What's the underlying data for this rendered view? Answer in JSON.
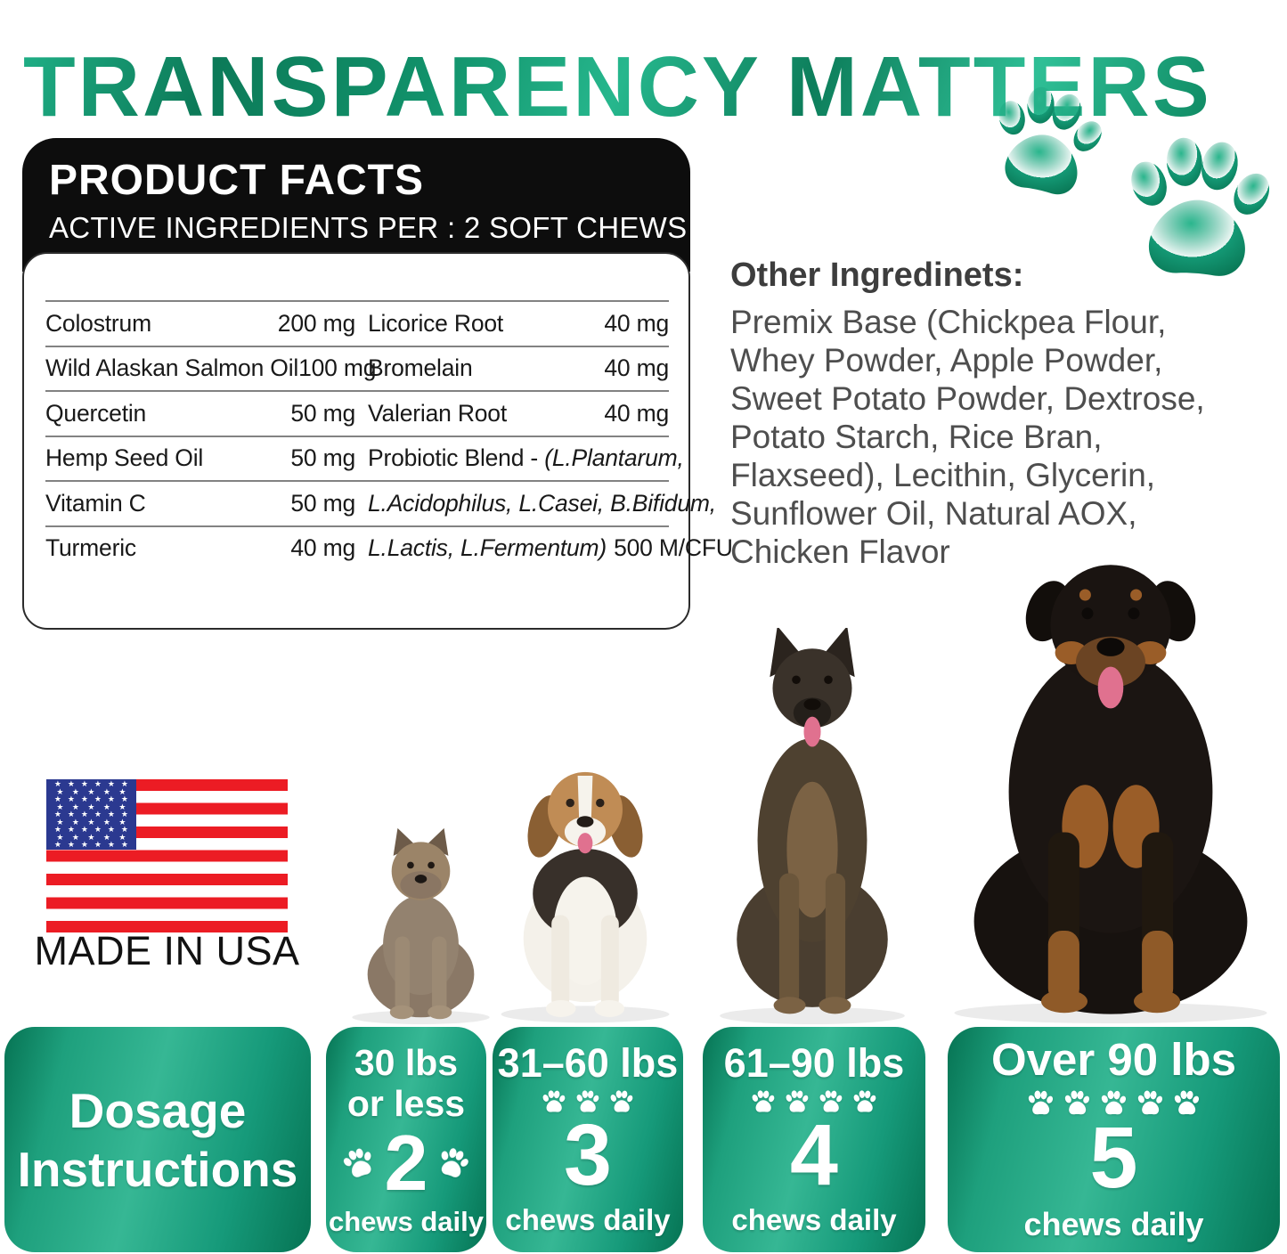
{
  "title": "TRANSPARENCY MATTERS",
  "colors": {
    "title_green_dark": "#0b7a57",
    "title_green_light": "#2fbf96",
    "panel_header_bg": "#0d0d0d",
    "box_green_dark": "#067353",
    "box_green_light": "#36b794",
    "paw_green": "#109071",
    "flag_red": "#ec1c24",
    "flag_blue": "#2b3990",
    "table_text": "#191919",
    "body_text_gray": "#4e4e4e"
  },
  "product_facts": {
    "heading": "PRODUCT FACTS",
    "subheading": "ACTIVE INGREDIENTS PER : 2 SOFT CHEWS",
    "rows": [
      {
        "left_name": "Colostrum",
        "left_amount": "200 mg",
        "right_name": "Licorice Root",
        "right_name_italic": "",
        "right_amount": "40 mg"
      },
      {
        "left_name": "Wild Alaskan Salmon Oil",
        "left_amount": "100 mg",
        "right_name": "Bromelain",
        "right_name_italic": "",
        "right_amount": "40 mg"
      },
      {
        "left_name": "Quercetin",
        "left_amount": "50 mg",
        "right_name": "Valerian Root",
        "right_name_italic": "",
        "right_amount": "40 mg"
      },
      {
        "left_name": "Hemp Seed Oil",
        "left_amount": "50 mg",
        "right_name": "Probiotic Blend - ",
        "right_name_italic": "(L.Plantarum,",
        "right_amount": ""
      },
      {
        "left_name": "Vitamin C",
        "left_amount": "50 mg",
        "right_name": "",
        "right_name_italic": "L.Acidophilus, L.Casei, B.Bifidum,",
        "right_amount": ""
      },
      {
        "left_name": "Turmeric",
        "left_amount": "40 mg",
        "right_name": "",
        "right_name_italic": "L.Lactis, L.Fermentum)",
        "right_amount": "500 M/CFU"
      }
    ]
  },
  "other_ingredients": {
    "heading": "Other Ingredinets:",
    "lines": [
      "Premix Base (Chickpea Flour,",
      "Whey Powder, Apple Powder,",
      "Sweet Potato Powder, Dextrose,",
      "Potato Starch, Rice Bran,",
      "Flaxseed), Lecithin, Glycerin,",
      "Sunflower Oil, Natural AOX,",
      "Chicken Flavor"
    ]
  },
  "made_in": "MADE IN USA",
  "flag": {
    "star": "★",
    "rows": [
      6,
      5,
      6,
      5,
      6,
      5,
      6,
      5,
      6
    ]
  },
  "dogs": [
    {
      "name": "yorkshire-terrier"
    },
    {
      "name": "beagle"
    },
    {
      "name": "german-shepherd"
    },
    {
      "name": "rottweiler"
    }
  ],
  "dosage": {
    "title_line1": "Dosage",
    "title_line2": "Instructions",
    "options": [
      {
        "weight_line1": "30 lbs",
        "weight_line2": "or less",
        "paw_count": 2,
        "chews": "2",
        "label": "chews daily"
      },
      {
        "weight": "31–60 lbs",
        "paw_count": 3,
        "chews": "3",
        "label": "chews daily"
      },
      {
        "weight": "61–90 lbs",
        "paw_count": 4,
        "chews": "4",
        "label": "chews daily"
      },
      {
        "weight": "Over 90 lbs",
        "paw_count": 5,
        "chews": "5",
        "label": "chews daily"
      }
    ]
  }
}
